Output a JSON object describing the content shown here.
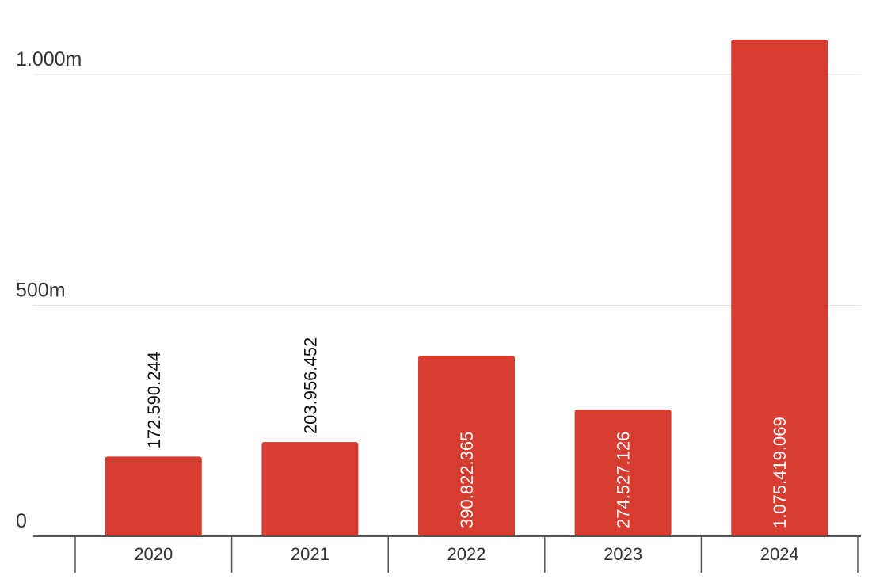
{
  "chart_data": {
    "type": "bar",
    "categories": [
      "2020",
      "2021",
      "2022",
      "2023",
      "2024"
    ],
    "values": [
      172590244,
      203956452,
      390822365,
      274527126,
      1075419069
    ],
    "value_labels": [
      "172.590.244",
      "203.956.452",
      "390.822.365",
      "274.527.126",
      "1.075.419.069"
    ],
    "yticks": [
      {
        "value": 0,
        "label": "0"
      },
      {
        "value": 500000000,
        "label": "500m"
      },
      {
        "value": 1000000000,
        "label": "1.000m"
      }
    ],
    "ylim": [
      0,
      1070000000
    ],
    "title": "",
    "xlabel": "",
    "ylabel": "",
    "grid": true,
    "legend": "none",
    "colors": {
      "bar": "#d63c2f",
      "grid": "#e6e6e6",
      "axis": "#555555",
      "label_dark": "#111111",
      "label_light": "#ffffff"
    }
  }
}
